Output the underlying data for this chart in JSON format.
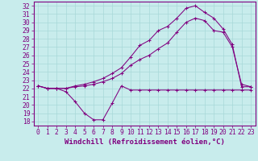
{
  "background_color": "#c8ecec",
  "line_color": "#800080",
  "grid_color": "#a8d8d8",
  "xlabel": "Windchill (Refroidissement éolien,°C)",
  "xlabel_fontsize": 6.5,
  "tick_fontsize": 5.8,
  "xlim": [
    -0.5,
    23.5
  ],
  "ylim": [
    17.5,
    32.5
  ],
  "yticks": [
    18,
    19,
    20,
    21,
    22,
    23,
    24,
    25,
    26,
    27,
    28,
    29,
    30,
    31,
    32
  ],
  "xticks": [
    0,
    1,
    2,
    3,
    4,
    5,
    6,
    7,
    8,
    9,
    10,
    11,
    12,
    13,
    14,
    15,
    16,
    17,
    18,
    19,
    20,
    21,
    22,
    23
  ],
  "series": [
    {
      "x": [
        0,
        1,
        2,
        3,
        4,
        5,
        6,
        7,
        8,
        9,
        10,
        11,
        12,
        13,
        14,
        15,
        16,
        17,
        18,
        19,
        20,
        21,
        22,
        23
      ],
      "y": [
        22.3,
        22.0,
        22.0,
        21.6,
        20.4,
        19.0,
        18.2,
        18.2,
        20.2,
        22.3,
        21.8,
        21.8,
        21.8,
        21.8,
        21.8,
        21.8,
        21.8,
        21.8,
        21.8,
        21.8,
        21.8,
        21.8,
        21.8,
        21.8
      ]
    },
    {
      "x": [
        0,
        1,
        2,
        3,
        4,
        5,
        6,
        7,
        8,
        9,
        10,
        11,
        12,
        13,
        14,
        15,
        16,
        17,
        18,
        19,
        20,
        21,
        22,
        23
      ],
      "y": [
        22.3,
        22.0,
        22.0,
        22.0,
        22.2,
        22.3,
        22.5,
        22.8,
        23.2,
        23.8,
        24.8,
        25.5,
        26.0,
        26.8,
        27.5,
        28.8,
        30.0,
        30.5,
        30.2,
        29.0,
        28.8,
        27.0,
        22.5,
        22.2
      ]
    },
    {
      "x": [
        0,
        1,
        2,
        3,
        4,
        5,
        6,
        7,
        8,
        9,
        10,
        11,
        12,
        13,
        14,
        15,
        16,
        17,
        18,
        19,
        20,
        21,
        22,
        23
      ],
      "y": [
        22.3,
        22.0,
        22.0,
        22.0,
        22.3,
        22.5,
        22.8,
        23.2,
        23.8,
        24.5,
        25.8,
        27.2,
        27.8,
        29.0,
        29.5,
        30.5,
        31.7,
        32.0,
        31.2,
        30.5,
        29.2,
        27.3,
        22.2,
        22.2
      ]
    }
  ]
}
